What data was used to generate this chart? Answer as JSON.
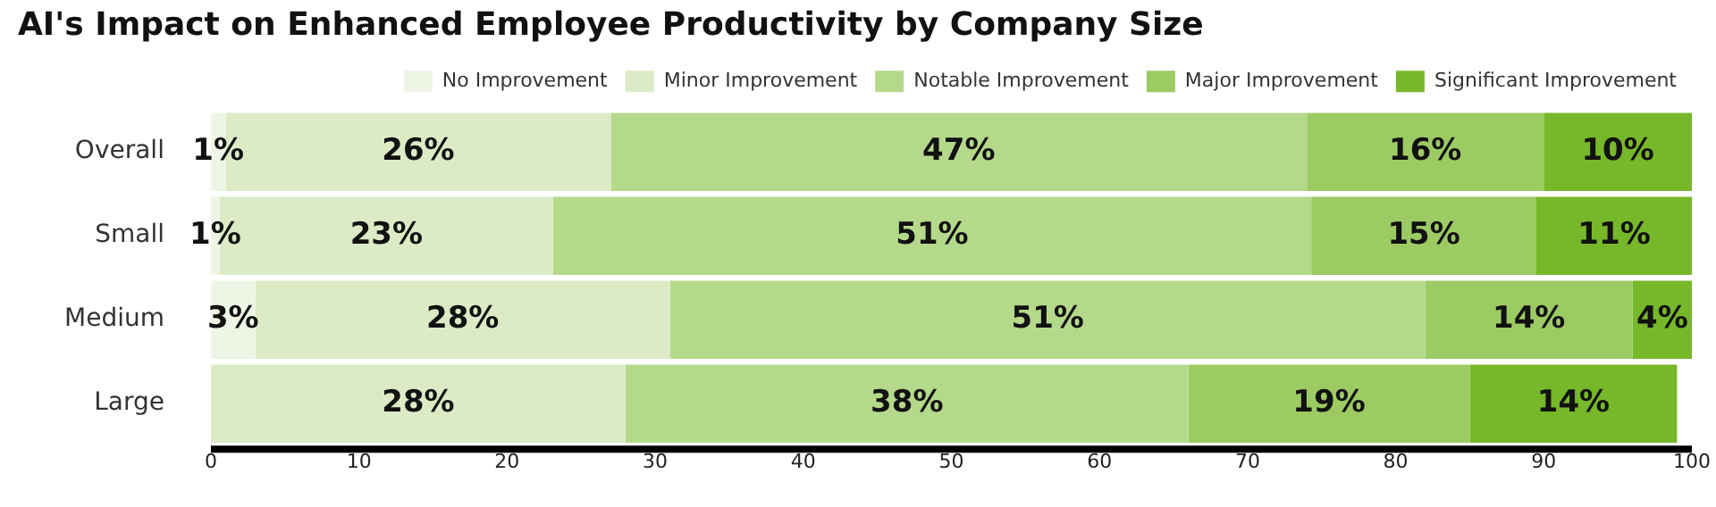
{
  "chart_data": {
    "type": "bar",
    "orientation": "horizontal",
    "stacked": true,
    "title": "AI's Impact on Enhanced Employee Productivity by Company Size",
    "categories": [
      "Overall",
      "Small",
      "Medium",
      "Large"
    ],
    "series": [
      {
        "name": "No Improvement",
        "color": "#eef5e4",
        "values": [
          1,
          0.6,
          3,
          null
        ],
        "value_labels": [
          "1%",
          "1%",
          "3%",
          null
        ]
      },
      {
        "name": "Minor Improvement",
        "color": "#dcebc6",
        "values": [
          26,
          22.5,
          28,
          28
        ],
        "value_labels": [
          "26%",
          "23%",
          "28%",
          "28%"
        ]
      },
      {
        "name": "Notable Improvement",
        "color": "#b5d98a",
        "values": [
          47,
          51.2,
          51,
          38
        ],
        "value_labels": [
          "47%",
          "51%",
          "51%",
          "38%"
        ]
      },
      {
        "name": "Major Improvement",
        "color": "#9ccb64",
        "values": [
          16,
          15.2,
          14,
          19
        ],
        "value_labels": [
          "16%",
          "15%",
          "14%",
          "19%"
        ]
      },
      {
        "name": "Significant Improvement",
        "color": "#76b82a",
        "values": [
          10,
          10.5,
          4,
          14
        ],
        "value_labels": [
          "10%",
          "11%",
          "4%",
          "14%"
        ]
      }
    ],
    "xlim": [
      0,
      100
    ],
    "xticks": [
      0,
      10,
      20,
      30,
      40,
      50,
      60,
      70,
      80,
      90,
      100
    ],
    "grid": false,
    "legend": "top right"
  }
}
